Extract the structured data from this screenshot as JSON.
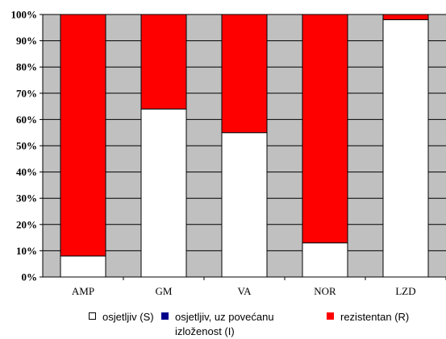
{
  "chart_data": {
    "type": "bar",
    "stacked": true,
    "normalized_percent": true,
    "categories": [
      "AMP",
      "GM",
      "VA",
      "NOR",
      "LZD"
    ],
    "series": [
      {
        "name": "osjetljiv (S)",
        "color": "#ffffff",
        "values": [
          8,
          64,
          55,
          13,
          98
        ]
      },
      {
        "name": "osjetljiv, uz povećanu izloženost (I)",
        "color": "#00008b",
        "values": [
          0,
          0,
          0,
          0,
          0
        ]
      },
      {
        "name": "rezistentan (R)",
        "color": "#ff0000",
        "values": [
          92,
          36,
          45,
          87,
          2
        ]
      }
    ],
    "y_ticks": [
      "0%",
      "10%",
      "20%",
      "30%",
      "40%",
      "50%",
      "60%",
      "70%",
      "80%",
      "90%",
      "100%"
    ],
    "ylim": [
      0,
      100
    ],
    "grid": true,
    "plot_background": "#c0c0c0",
    "legend_position": "bottom",
    "title": "",
    "xlabel": "",
    "ylabel": ""
  },
  "legend": {
    "item0": "osjetljiv (S)",
    "item1_line1": "osjetljiv, uz povećanu",
    "item1_line2": "izloženost (I)",
    "item2": "rezistentan (R)"
  }
}
